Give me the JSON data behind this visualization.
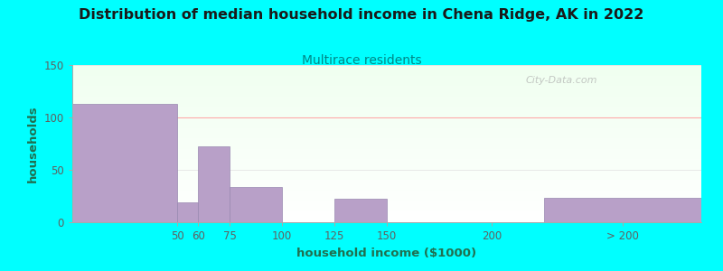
{
  "title": "Distribution of median household income in Chena Ridge, AK in 2022",
  "subtitle": "Multirace residents",
  "xlabel": "household income ($1000)",
  "ylabel": "households",
  "background_color": "#00FFFF",
  "bar_color": "#b8a0c8",
  "bar_edge_color": "#9888b0",
  "title_color": "#1a1a1a",
  "subtitle_color": "#008888",
  "axis_label_color": "#207050",
  "tick_label_color": "#606060",
  "grid_color_100": "#ffaaaa",
  "grid_color_other": "#e0e0e0",
  "ylim": [
    0,
    150
  ],
  "yticks": [
    0,
    50,
    100,
    150
  ],
  "bar_lefts": [
    0,
    50,
    60,
    75,
    125,
    225
  ],
  "bar_widths": [
    50,
    10,
    15,
    25,
    25,
    75
  ],
  "bar_heights": [
    113,
    19,
    72,
    34,
    22,
    23
  ],
  "x_tick_positions": [
    50,
    60,
    75,
    100,
    125,
    150,
    200,
    262.5
  ],
  "x_tick_labels": [
    "50",
    "60",
    "75",
    "100",
    "125",
    "150",
    "200",
    "> 200"
  ],
  "x_lim": [
    0,
    300
  ],
  "watermark": "City-Data.com"
}
